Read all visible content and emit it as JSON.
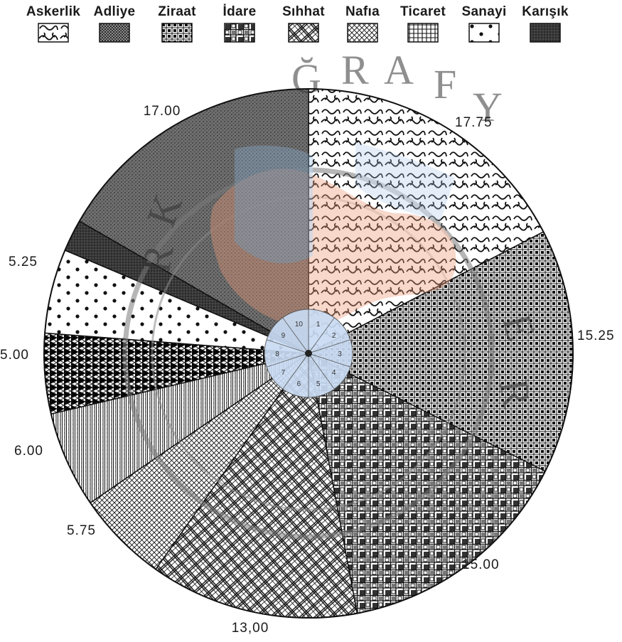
{
  "chart_data": {
    "type": "pie",
    "legend_position": "top",
    "categories": [
      "Askerlik",
      "Adliye",
      "Ziraat",
      "İdare",
      "Sıhhat",
      "Nafıa",
      "Ticaret",
      "Sanayi",
      "Karışık"
    ],
    "slices": [
      {
        "label": "17.75",
        "value": 17.75
      },
      {
        "label": "15.25",
        "value": 15.25
      },
      {
        "label": "15.00",
        "value": 15.0
      },
      {
        "label": "13,00",
        "value": 13.0
      },
      {
        "label": "5.75",
        "value": 5.75
      },
      {
        "label": "6.00",
        "value": 6.0
      },
      {
        "label": "5.00",
        "value": 5.0
      },
      {
        "label": "5.25",
        "value": 5.25
      },
      {
        "label": "",
        "value": 2.0
      },
      {
        "label": "17.00",
        "value": 17.0
      }
    ],
    "center_ring_digits": [
      "1",
      "2",
      "3",
      "4",
      "5",
      "6",
      "7",
      "8",
      "9",
      "10"
    ],
    "background_watermark": [
      "Ğ",
      "R",
      "A",
      "F",
      "Y",
      "K",
      "R",
      "E",
      "R"
    ]
  }
}
